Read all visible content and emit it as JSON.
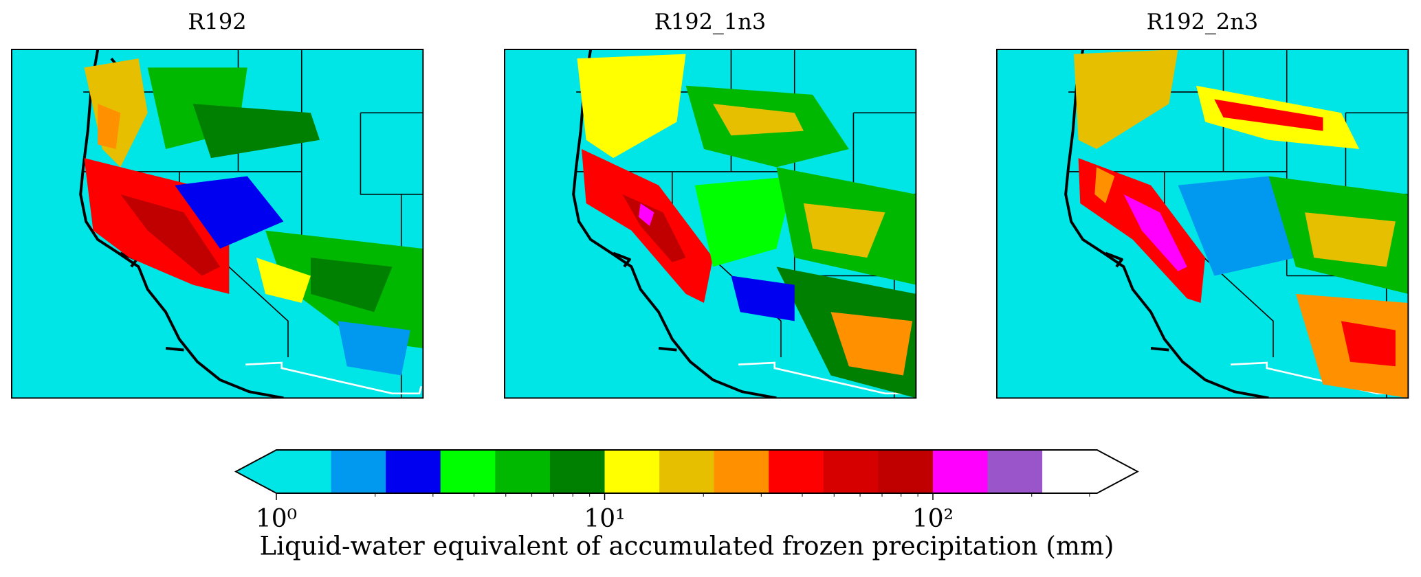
{
  "chart_data": {
    "type": "colorbar",
    "panels": [
      {
        "title": "R192"
      },
      {
        "title": "R192_1n3"
      },
      {
        "title": "R192_2n3"
      }
    ],
    "colorbar": {
      "label": "Liquid-water equivalent of accumulated frozen precipitation (mm)",
      "log_scale": true,
      "extend": "both",
      "boundaries": [
        1,
        1.468,
        2.154,
        3.162,
        4.642,
        6.813,
        10,
        14.68,
        21.54,
        31.62,
        46.42,
        68.13,
        100,
        146.8,
        215.4,
        316.2
      ],
      "colors": [
        "#00e5e6",
        "#0099ef",
        "#0000f0",
        "#00ff00",
        "#00b800",
        "#008000",
        "#ffff00",
        "#e6bf00",
        "#ff9000",
        "#ff0000",
        "#d60000",
        "#c00000",
        "#ff00ff",
        "#9955c9",
        "#ffffff"
      ],
      "under_color": "#00e5e6",
      "over_color": "#ffffff",
      "ticks": [
        {
          "value": 1,
          "label": "10⁰"
        },
        {
          "value": 10,
          "label": "10¹"
        },
        {
          "value": 100,
          "label": "10²"
        }
      ],
      "minor_ticks": [
        2,
        3,
        4,
        5,
        6,
        7,
        8,
        9,
        20,
        30,
        40,
        50,
        60,
        70,
        80,
        90,
        200,
        300
      ]
    }
  }
}
